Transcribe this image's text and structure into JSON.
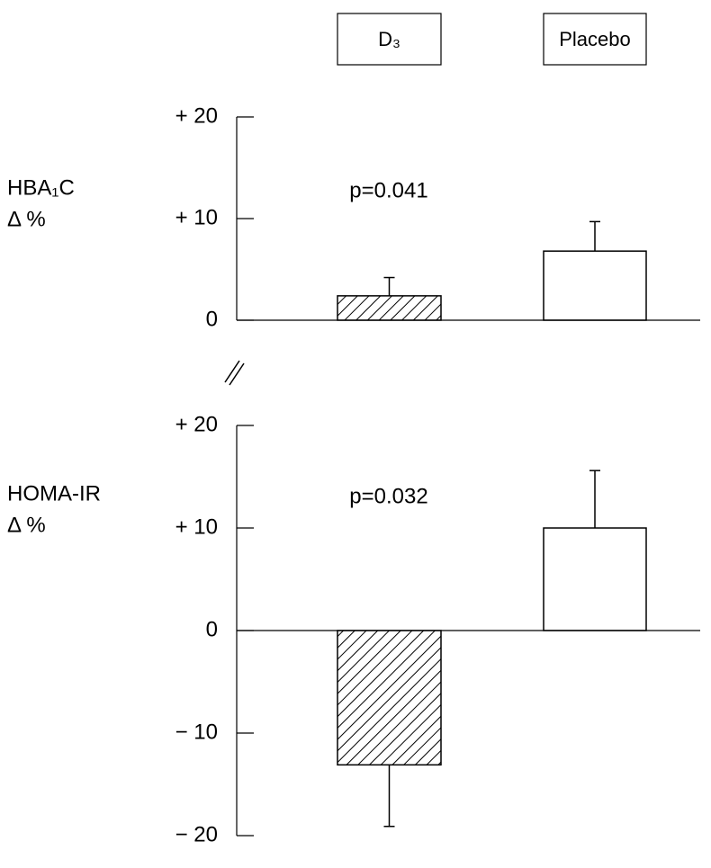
{
  "legend": {
    "items": [
      {
        "label": "D₃",
        "fill": "hatch"
      },
      {
        "label": "Placebo",
        "fill": "#ffffff"
      }
    ]
  },
  "chart_data": [
    {
      "type": "bar",
      "ylabel_lines": [
        "HBA₁C",
        "Δ %"
      ],
      "annotation": "p=0.041",
      "ylim": [
        0,
        20
      ],
      "yticks": [
        {
          "value": 0,
          "label": "0"
        },
        {
          "value": 10,
          "label": "+ 10"
        },
        {
          "value": 20,
          "label": "+ 20"
        }
      ],
      "series": [
        {
          "values": [
            2.4
          ],
          "errors": [
            1.8
          ]
        },
        {
          "values": [
            6.8
          ],
          "errors": [
            2.9
          ]
        }
      ]
    },
    {
      "type": "bar",
      "ylabel_lines": [
        "HOMA-IR",
        "Δ %"
      ],
      "annotation": "p=0.032",
      "ylim": [
        -20,
        20
      ],
      "yticks": [
        {
          "value": -20,
          "label": "− 20"
        },
        {
          "value": -10,
          "label": "− 10"
        },
        {
          "value": 0,
          "label": "0"
        },
        {
          "value": 10,
          "label": "+ 10"
        },
        {
          "value": 20,
          "label": "+ 20"
        }
      ],
      "series": [
        {
          "values": [
            -13.1
          ],
          "errors": [
            6.0
          ]
        },
        {
          "values": [
            10.0
          ],
          "errors": [
            5.6
          ]
        }
      ]
    }
  ]
}
